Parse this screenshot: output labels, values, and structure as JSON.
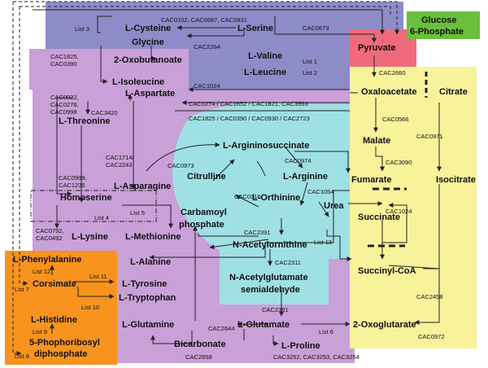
{
  "regions": [
    {
      "id": "purple-top",
      "color": "#8e8bc9"
    },
    {
      "id": "pink-left",
      "color": "#c9a0d8"
    },
    {
      "id": "purple-bottom",
      "color": "#c9a0d8"
    },
    {
      "id": "orange",
      "color": "#f7931e"
    },
    {
      "id": "yellow",
      "color": "#f8f29a"
    },
    {
      "id": "red-pyruvate",
      "color": "#ef6b7b"
    },
    {
      "id": "green-glucose",
      "color": "#6cbf3c"
    },
    {
      "id": "cyan",
      "color": "#9fe0e4"
    }
  ],
  "nodes": {
    "glucose6p_l1": "Glucose",
    "glucose6p_l2": "6-Phosphate",
    "pyruvate": "Pyruvate",
    "cysteine": "L-Cysteine",
    "serine": "L-Serine",
    "glycine": "Glycine",
    "oxobutanoate": "2-Oxobutanoate",
    "isoleucine": "L-Isoleucine",
    "valine": "L-Valine",
    "leucine": "L-Leucine",
    "aspartate": "L-Aspartate",
    "oxaloacetate": "Oxaloacetate",
    "citrate": "Citrate",
    "threonine": "L-Threonine",
    "argininosuccinate": "L-Argininosuccinate",
    "malate": "Malate",
    "citrulline": "Citrulline",
    "arginine": "L-Arginine",
    "fumarate": "Fumarate",
    "isocitrate": "Isocitrate",
    "asparagine": "L-Asparagine",
    "ornithine": "L-Orthinine",
    "urea": "Urea",
    "homoserine": "Homoserine",
    "carbamoyl_l1": "Carbamoyl",
    "carbamoyl_l2": "phosphate",
    "succinate": "Succinate",
    "lysine": "L-Lysine",
    "methionine": "L-Methionine",
    "acetylornithine": "N-Acetylornithine",
    "phenylalanine": "L-Phenylalanine",
    "alanine": "L-Alanine",
    "succinylcoa": "Succinyl-CoA",
    "corsimate": "Corsimate",
    "tyrosine": "L-Tyrosine",
    "acetylglutamate_l1": "N-Acetylglutamate",
    "acetylglutamate_l2": "semialdehyde",
    "tryptophan": "L-Tryptophan",
    "histidine": "L-Histidine",
    "glutamine": "L-Glutamine",
    "glutamate": "L-Glutamate",
    "oxoglutarate": "2-Oxoglutarate",
    "prpp_l1": "5-Phophoribosyl",
    "prpp_l2": "diphosphate",
    "bicarbonate": "Bicarbonate",
    "proline": "L-Proline"
  },
  "enzymes": {
    "e_serine_cys": "CAC0102, CAC0687, CAC0931",
    "e_0673": "CAC0673",
    "e_1825_0390_l1": "CAC1825,",
    "e_1825_0390_l2": "CAC0390",
    "e_2264": "CAC2264",
    "e_2660": "CAC2660",
    "e_1024_top": "CAC1024",
    "e_asp_group_l1": "CAC0022,",
    "e_asp_group_l2": "CAC0278,",
    "e_asp_group_l3": "CAC0998",
    "e_asp_line1": "CAC0274 / CAC1652 / CAC1821, CAC3593",
    "e_asp_line2": "CAC1825 / CAC0390 / CAC0930 / CAC2723",
    "e_3420": "CAC3420",
    "e_0566": "CAC0566",
    "e_0971": "CAC0971",
    "e_1714_l1": "CAC1714/",
    "e_1714_l2": "CAC2243",
    "e_0973": "CAC0973",
    "e_0974": "CAC0974",
    "e_3090": "CAC3090",
    "e_0999_l1": "CAC0999,",
    "e_0999_l2": "CAC1235",
    "e_0316": "CAC0316",
    "e_1054": "CAC1054",
    "e_1024_mid": "CAC1024",
    "e_0792_l1": "CAC0792,",
    "e_0792_l2": "CAC0492",
    "e_2391_a": "CAC2391",
    "e_2311": "CAC2311",
    "e_2391_b": "CAC2391",
    "e_2458": "CAC2458",
    "e_2644": "CAC2644",
    "e_0972": "CAC0972",
    "e_2658": "CAC2658",
    "e_prolines": "CAC3252, CAC3253, CAC3254"
  },
  "lists": {
    "list1": "List 1",
    "list2": "List 2",
    "list3": "List 3",
    "list4": "List 4",
    "list5": "List 5",
    "list6": "List 6",
    "list7": "List 7",
    "list8": "List 8",
    "list9": "List 9",
    "list10": "List 10",
    "list11": "List 11",
    "list12": "List 12",
    "list13": "List 13"
  }
}
